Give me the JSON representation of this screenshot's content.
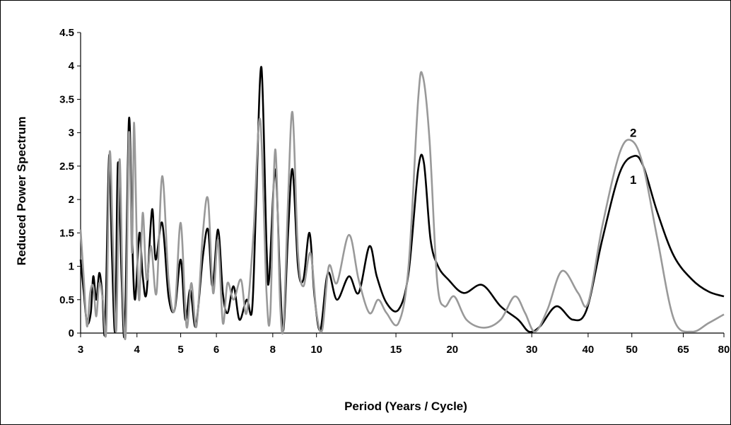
{
  "chart_data": {
    "type": "line",
    "xlabel": "Period (Years / Cycle)",
    "ylabel": "Reduced Power Spectrum",
    "ylim": [
      0,
      4.5
    ],
    "yticks": [
      "0",
      "0.5",
      "1",
      "1.5",
      "2",
      "2.5",
      "3",
      "3.5",
      "4",
      "4.5"
    ],
    "xticks": [
      "3",
      "4",
      "5",
      "6",
      "8",
      "10",
      "15",
      "20",
      "30",
      "40",
      "50",
      "65",
      "80"
    ],
    "xlim": [
      3,
      80
    ],
    "grid": false,
    "annotations": [
      {
        "text": "2",
        "x": 50,
        "y": 3.0
      },
      {
        "text": "1",
        "x": 50,
        "y": 2.3
      }
    ],
    "series": [
      {
        "color": "#000000",
        "points": [
          [
            3,
            1.1
          ],
          [
            3.05,
            0.6
          ],
          [
            3.1,
            0.15
          ],
          [
            3.16,
            0.3
          ],
          [
            3.2,
            0.85
          ],
          [
            3.25,
            0.5
          ],
          [
            3.3,
            0.9
          ],
          [
            3.35,
            0.6
          ],
          [
            3.4,
            0.05
          ],
          [
            3.47,
            2.65
          ],
          [
            3.52,
            1.2
          ],
          [
            3.58,
            0.05
          ],
          [
            3.63,
            2.55
          ],
          [
            3.7,
            0.8
          ],
          [
            3.76,
            0.05
          ],
          [
            3.84,
            3.2
          ],
          [
            3.9,
            1.5
          ],
          [
            3.96,
            0.5
          ],
          [
            4.05,
            1.5
          ],
          [
            4.12,
            0.85
          ],
          [
            4.2,
            0.6
          ],
          [
            4.32,
            1.85
          ],
          [
            4.4,
            1.1
          ],
          [
            4.55,
            1.65
          ],
          [
            4.7,
            0.55
          ],
          [
            4.85,
            0.35
          ],
          [
            5.0,
            1.1
          ],
          [
            5.12,
            0.2
          ],
          [
            5.25,
            0.65
          ],
          [
            5.4,
            0.1
          ],
          [
            5.6,
            1.15
          ],
          [
            5.75,
            1.55
          ],
          [
            5.88,
            0.7
          ],
          [
            6.05,
            1.55
          ],
          [
            6.2,
            0.6
          ],
          [
            6.35,
            0.3
          ],
          [
            6.55,
            0.7
          ],
          [
            6.75,
            0.2
          ],
          [
            7.0,
            0.5
          ],
          [
            7.2,
            0.35
          ],
          [
            7.35,
            2.0
          ],
          [
            7.55,
            3.98
          ],
          [
            7.75,
            1.3
          ],
          [
            7.85,
            0.8
          ],
          [
            8.1,
            2.45
          ],
          [
            8.3,
            0.8
          ],
          [
            8.45,
            0.05
          ],
          [
            8.65,
            1.5
          ],
          [
            8.85,
            2.45
          ],
          [
            9.1,
            1.0
          ],
          [
            9.35,
            0.8
          ],
          [
            9.65,
            1.5
          ],
          [
            9.9,
            0.55
          ],
          [
            10.2,
            0.05
          ],
          [
            10.6,
            0.9
          ],
          [
            11.1,
            0.5
          ],
          [
            11.8,
            0.85
          ],
          [
            12.4,
            0.6
          ],
          [
            13.1,
            1.3
          ],
          [
            13.6,
            0.85
          ],
          [
            14.3,
            0.45
          ],
          [
            15.2,
            0.35
          ],
          [
            16.0,
            0.9
          ],
          [
            16.8,
            2.45
          ],
          [
            17.3,
            2.55
          ],
          [
            17.9,
            1.4
          ],
          [
            18.6,
            1.0
          ],
          [
            19.6,
            0.8
          ],
          [
            21.2,
            0.6
          ],
          [
            23.3,
            0.72
          ],
          [
            25.6,
            0.4
          ],
          [
            28.0,
            0.2
          ],
          [
            29.6,
            0.02
          ],
          [
            31.3,
            0.1
          ],
          [
            34.0,
            0.4
          ],
          [
            37.0,
            0.2
          ],
          [
            39.7,
            0.35
          ],
          [
            43.0,
            1.4
          ],
          [
            47.0,
            2.4
          ],
          [
            50.5,
            2.65
          ],
          [
            53.0,
            2.5
          ],
          [
            57.0,
            1.8
          ],
          [
            62.0,
            1.15
          ],
          [
            68.0,
            0.8
          ],
          [
            74.0,
            0.62
          ],
          [
            80.0,
            0.55
          ]
        ]
      },
      {
        "color": "#999999",
        "points": [
          [
            3,
            1.55
          ],
          [
            3.05,
            0.8
          ],
          [
            3.1,
            0.1
          ],
          [
            3.15,
            0.6
          ],
          [
            3.2,
            0.7
          ],
          [
            3.25,
            0.25
          ],
          [
            3.3,
            0.75
          ],
          [
            3.36,
            0.5
          ],
          [
            3.42,
            0.05
          ],
          [
            3.48,
            2.7
          ],
          [
            3.54,
            1.3
          ],
          [
            3.6,
            0.05
          ],
          [
            3.66,
            2.6
          ],
          [
            3.72,
            0.6
          ],
          [
            3.78,
            0.05
          ],
          [
            3.84,
            3.0
          ],
          [
            3.9,
            1.2
          ],
          [
            3.94,
            3.15
          ],
          [
            4.0,
            1.3
          ],
          [
            4.05,
            0.5
          ],
          [
            4.12,
            1.8
          ],
          [
            4.2,
            0.8
          ],
          [
            4.3,
            1.3
          ],
          [
            4.42,
            0.6
          ],
          [
            4.55,
            2.35
          ],
          [
            4.7,
            0.8
          ],
          [
            4.85,
            0.35
          ],
          [
            5.0,
            1.65
          ],
          [
            5.15,
            0.1
          ],
          [
            5.28,
            0.75
          ],
          [
            5.42,
            0.1
          ],
          [
            5.6,
            1.5
          ],
          [
            5.75,
            2.0
          ],
          [
            5.9,
            0.6
          ],
          [
            6.05,
            1.4
          ],
          [
            6.2,
            0.15
          ],
          [
            6.35,
            0.75
          ],
          [
            6.55,
            0.5
          ],
          [
            6.8,
            0.8
          ],
          [
            7.0,
            0.3
          ],
          [
            7.25,
            1.5
          ],
          [
            7.5,
            3.2
          ],
          [
            7.75,
            0.6
          ],
          [
            7.9,
            0.3
          ],
          [
            8.1,
            2.75
          ],
          [
            8.3,
            0.5
          ],
          [
            8.45,
            0.1
          ],
          [
            8.65,
            2.0
          ],
          [
            8.85,
            3.3
          ],
          [
            9.1,
            1.2
          ],
          [
            9.35,
            0.7
          ],
          [
            9.7,
            1.2
          ],
          [
            10.0,
            0.3
          ],
          [
            10.3,
            0.05
          ],
          [
            10.65,
            1.0
          ],
          [
            11.1,
            0.75
          ],
          [
            11.8,
            1.47
          ],
          [
            12.4,
            0.8
          ],
          [
            13.1,
            0.3
          ],
          [
            13.7,
            0.5
          ],
          [
            14.3,
            0.3
          ],
          [
            15.2,
            0.15
          ],
          [
            16.0,
            1.0
          ],
          [
            16.8,
            3.5
          ],
          [
            17.2,
            3.85
          ],
          [
            17.8,
            2.9
          ],
          [
            18.5,
            0.8
          ],
          [
            19.2,
            0.4
          ],
          [
            20.2,
            0.55
          ],
          [
            21.5,
            0.2
          ],
          [
            23.5,
            0.08
          ],
          [
            25.6,
            0.2
          ],
          [
            27.5,
            0.55
          ],
          [
            29.0,
            0.3
          ],
          [
            30.5,
            0.02
          ],
          [
            32.5,
            0.35
          ],
          [
            35.0,
            0.93
          ],
          [
            38.0,
            0.6
          ],
          [
            40.0,
            0.45
          ],
          [
            43.0,
            1.6
          ],
          [
            47.0,
            2.7
          ],
          [
            50.0,
            2.88
          ],
          [
            53.0,
            2.5
          ],
          [
            57.0,
            1.4
          ],
          [
            62.0,
            0.2
          ],
          [
            68.0,
            0.02
          ],
          [
            74.0,
            0.15
          ],
          [
            80.0,
            0.28
          ]
        ]
      }
    ]
  }
}
